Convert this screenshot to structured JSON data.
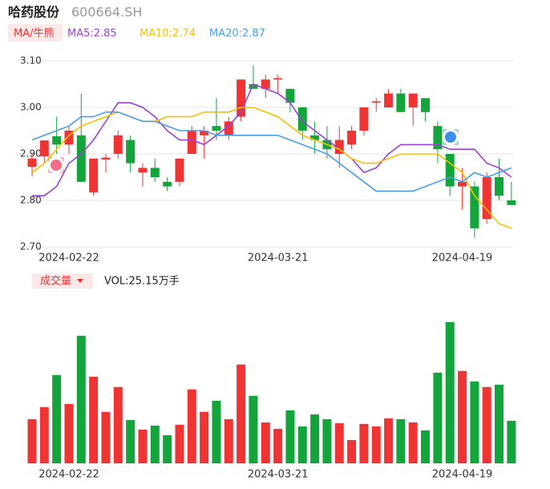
{
  "header": {
    "name": "哈药股份",
    "code": "600664.SH"
  },
  "chart_data": [
    {
      "type": "candlestick",
      "legend_title": "MA/牛熊",
      "categories": [
        null,
        null,
        null,
        "2024-02-22",
        null,
        null,
        null,
        null,
        null,
        null,
        null,
        null,
        null,
        null,
        null,
        null,
        null,
        null,
        null,
        null,
        "2024-03-21",
        null,
        null,
        null,
        null,
        null,
        null,
        null,
        null,
        null,
        null,
        null,
        null,
        null,
        null,
        "2024-04-19",
        null,
        null,
        null,
        null
      ],
      "open": [
        2.872,
        2.895,
        2.938,
        2.92,
        2.94,
        2.817,
        2.888,
        2.9,
        2.93,
        2.86,
        2.87,
        2.84,
        2.84,
        2.9,
        2.94,
        2.96,
        2.94,
        2.98,
        3.05,
        3.04,
        3.06,
        3.04,
        3.0,
        2.94,
        2.93,
        2.9,
        2.92,
        2.95,
        3.01,
        3.0,
        3.03,
        3.0,
        3.02,
        2.96,
        2.9,
        2.83,
        2.83,
        2.76,
        2.85,
        2.8
      ],
      "high": [
        2.9,
        2.93,
        2.98,
        2.96,
        3.03,
        2.89,
        2.9,
        2.95,
        2.94,
        2.88,
        2.89,
        2.85,
        2.89,
        2.96,
        2.96,
        3.02,
        2.98,
        3.06,
        3.09,
        3.07,
        3.07,
        3.04,
        3.0,
        2.97,
        2.96,
        2.96,
        2.96,
        3.0,
        3.02,
        3.04,
        3.04,
        3.03,
        3.02,
        2.97,
        2.9,
        2.87,
        2.84,
        2.86,
        2.89,
        2.84
      ],
      "low": [
        2.852,
        2.88,
        2.9,
        2.9,
        2.84,
        2.81,
        2.86,
        2.89,
        2.86,
        2.83,
        2.84,
        2.82,
        2.83,
        2.9,
        2.89,
        2.93,
        2.93,
        2.97,
        3.04,
        3.02,
        3.03,
        2.99,
        2.93,
        2.9,
        2.89,
        2.87,
        2.91,
        2.94,
        2.99,
        3.0,
        2.99,
        2.96,
        2.97,
        2.88,
        2.81,
        2.78,
        2.72,
        2.75,
        2.8,
        2.79
      ],
      "close": [
        2.89,
        2.929,
        2.92,
        2.95,
        2.84,
        2.89,
        2.892,
        2.94,
        2.88,
        2.87,
        2.85,
        2.83,
        2.89,
        2.95,
        2.95,
        2.95,
        2.97,
        3.06,
        3.04,
        3.06,
        3.063,
        3.01,
        2.95,
        2.93,
        2.91,
        2.93,
        2.95,
        3.0,
        3.013,
        3.03,
        2.99,
        3.03,
        2.99,
        2.91,
        2.83,
        2.84,
        2.74,
        2.85,
        2.81,
        2.79
      ],
      "up_color": "#f03434",
      "down_color": "#13a53b",
      "series": [
        {
          "name": "MA5:2.85",
          "color": "#9b40d8",
          "values": [
            2.81,
            2.81,
            2.83,
            2.88,
            2.9,
            2.93,
            2.97,
            3.01,
            3.01,
            3.0,
            2.98,
            2.95,
            2.93,
            2.93,
            2.92,
            2.94,
            2.96,
            2.99,
            3.05,
            3.04,
            3.03,
            3.01,
            2.97,
            2.95,
            2.93,
            2.91,
            2.89,
            2.86,
            2.87,
            2.9,
            2.92,
            2.92,
            2.92,
            2.92,
            2.91,
            2.91,
            2.91,
            2.88,
            2.87,
            2.85
          ]
        },
        {
          "name": "MA10:2.74",
          "color": "#f5c000",
          "values": [
            2.86,
            2.88,
            2.91,
            2.94,
            2.96,
            2.97,
            2.98,
            2.99,
            2.98,
            2.97,
            2.97,
            2.98,
            2.98,
            2.98,
            2.99,
            2.99,
            2.99,
            3.0,
            3.0,
            2.99,
            2.98,
            2.96,
            2.94,
            2.93,
            2.92,
            2.91,
            2.89,
            2.88,
            2.88,
            2.89,
            2.9,
            2.9,
            2.9,
            2.9,
            2.88,
            2.86,
            2.81,
            2.78,
            2.75,
            2.74
          ]
        },
        {
          "name": "MA20:2.87",
          "color": "#4a9ee8",
          "values": [
            2.93,
            2.94,
            2.95,
            2.96,
            2.98,
            2.98,
            2.99,
            2.99,
            2.98,
            2.97,
            2.97,
            2.96,
            2.95,
            2.95,
            2.95,
            2.94,
            2.94,
            2.94,
            2.94,
            2.94,
            2.94,
            2.93,
            2.92,
            2.91,
            2.9,
            2.88,
            2.86,
            2.84,
            2.82,
            2.82,
            2.82,
            2.82,
            2.83,
            2.84,
            2.85,
            2.84,
            2.86,
            2.85,
            2.86,
            2.87
          ]
        }
      ],
      "ylim": [
        2.7,
        3.1
      ],
      "yticks": [
        {
          "value": 2.7,
          "label": "2.70"
        },
        {
          "value": 2.8,
          "label": "2.80"
        },
        {
          "value": 2.9,
          "label": "2.90"
        },
        {
          "value": 3.0,
          "label": "3.00"
        },
        {
          "value": 3.1,
          "label": "3.10"
        }
      ],
      "grid": true
    },
    {
      "type": "bar",
      "indicator": "成交量",
      "label": "VOL:25.15万手",
      "categories": [
        null,
        null,
        null,
        "2024-02-22",
        null,
        null,
        null,
        null,
        null,
        null,
        null,
        null,
        null,
        null,
        null,
        null,
        null,
        null,
        null,
        null,
        "2024-03-21",
        null,
        null,
        null,
        null,
        null,
        null,
        null,
        null,
        null,
        null,
        null,
        null,
        null,
        null,
        "2024-04-19",
        null,
        null,
        null,
        null
      ],
      "values": [
        26.1,
        33.2,
        52.2,
        35.1,
        75.4,
        51.2,
        30.4,
        45.1,
        25.6,
        19.9,
        22.3,
        16.6,
        22.8,
        43.7,
        30.4,
        37.0,
        26.1,
        58.4,
        39.9,
        24.2,
        20.4,
        31.3,
        21.8,
        28.9,
        26.1,
        23.7,
        13.8,
        23.3,
        21.8,
        26.6,
        26.1,
        24.2,
        19.5,
        53.6,
        83.5,
        54.6,
        48.4,
        45.1,
        46.5,
        25.15
      ],
      "ylim": [
        0,
        90
      ]
    }
  ]
}
